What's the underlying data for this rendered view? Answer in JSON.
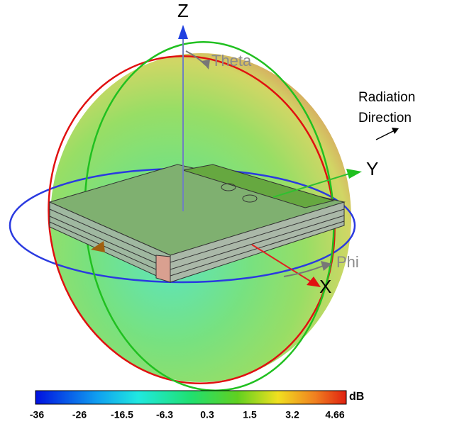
{
  "axes": {
    "z": "Z",
    "y": "Y",
    "x": "X",
    "theta": "Theta",
    "phi": "Phi"
  },
  "annotation": [
    "Radiation",
    "Direction"
  ],
  "colorbar": {
    "unit": "dB",
    "ticks": [
      -36,
      -26,
      -16.5,
      -6.3,
      0.3,
      1.5,
      3.2,
      4.66
    ]
  }
}
